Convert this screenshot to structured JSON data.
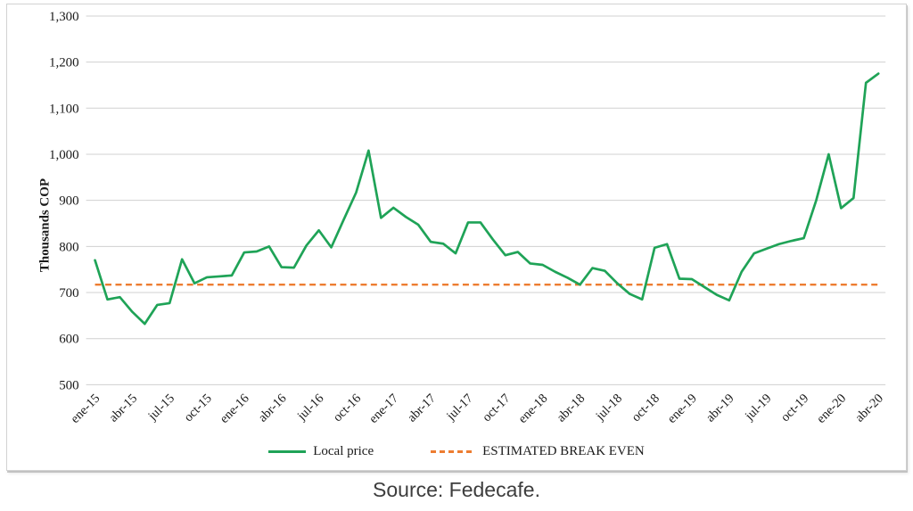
{
  "figure": {
    "source_note": "Source: Fedecafe."
  },
  "colors": {
    "local_price_green": "#1fa357",
    "break_even_orange": "#ED7D31",
    "gridline_gray": "#d0d0d0"
  },
  "chart_data": {
    "type": "line",
    "title": "",
    "xlabel": "",
    "ylabel": "Thousands COP",
    "ylim": [
      500,
      1300
    ],
    "ytick_step": 100,
    "y_tick_labels": [
      "500",
      "600",
      "700",
      "800",
      "900",
      "1,000",
      "1,100",
      "1,200",
      "1,300"
    ],
    "grid": "horizontal",
    "legend_position": "bottom",
    "x_tick_every": 3,
    "x": [
      "ene-15",
      "feb-15",
      "mar-15",
      "abr-15",
      "may-15",
      "jun-15",
      "jul-15",
      "ago-15",
      "sep-15",
      "oct-15",
      "nov-15",
      "dic-15",
      "ene-16",
      "feb-16",
      "mar-16",
      "abr-16",
      "may-16",
      "jun-16",
      "jul-16",
      "ago-16",
      "sep-16",
      "oct-16",
      "nov-16",
      "dic-16",
      "ene-17",
      "feb-17",
      "mar-17",
      "abr-17",
      "may-17",
      "jun-17",
      "jul-17",
      "ago-17",
      "sep-17",
      "oct-17",
      "nov-17",
      "dic-17",
      "ene-18",
      "feb-18",
      "mar-18",
      "abr-18",
      "may-18",
      "jun-18",
      "jul-18",
      "ago-18",
      "sep-18",
      "oct-18",
      "nov-18",
      "dic-18",
      "ene-19",
      "feb-19",
      "mar-19",
      "abr-19",
      "may-19",
      "jun-19",
      "jul-19",
      "ago-19",
      "sep-19",
      "oct-19",
      "nov-19",
      "dic-19",
      "ene-20",
      "feb-20",
      "mar-20",
      "abr-20"
    ],
    "series": [
      {
        "name": "Local price",
        "color": "#1fa357",
        "line_style": "solid",
        "values": [
          770,
          685,
          690,
          658,
          632,
          673,
          677,
          772,
          720,
          733,
          735,
          737,
          787,
          789,
          800,
          755,
          754,
          802,
          835,
          798,
          858,
          917,
          1008,
          862,
          884,
          864,
          847,
          810,
          806,
          785,
          852,
          852,
          815,
          781,
          788,
          763,
          760,
          745,
          732,
          717,
          753,
          747,
          720,
          697,
          685,
          797,
          805,
          730,
          729,
          712,
          695,
          683,
          745,
          785,
          795,
          805,
          812,
          818,
          900,
          1000,
          883,
          905,
          1155,
          1175
        ]
      },
      {
        "name": "ESTIMATED BREAK EVEN",
        "color": "#ED7D31",
        "line_style": "dashed",
        "constant_value": 717
      }
    ]
  }
}
